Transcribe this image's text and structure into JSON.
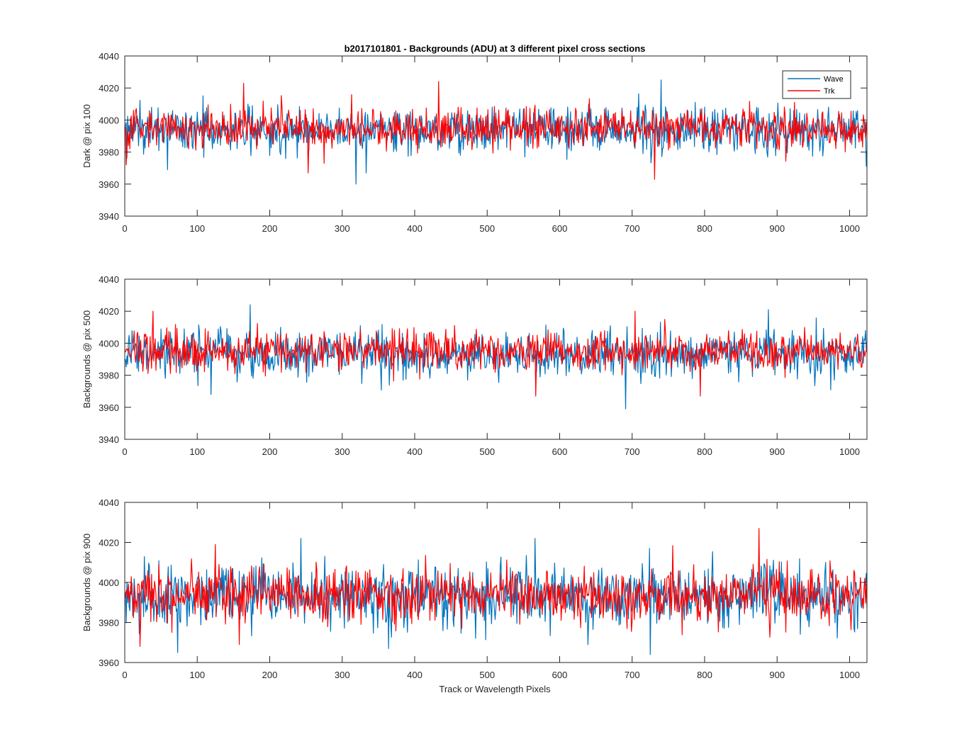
{
  "figure": {
    "title": "b2017101801 - Backgrounds (ADU) at 3 different pixel cross sections",
    "xlabel": "Track or Wavelength Pixels"
  },
  "colors": {
    "wave": "#0072BD",
    "trk": "#FF0000",
    "axis": "#262626"
  },
  "chart_data": [
    {
      "type": "line",
      "title": "b2017101801 - Backgrounds (ADU) at 3 different pixel cross sections",
      "ylabel": "Dark @ pix 100",
      "xlabel": "",
      "xlim": [
        0,
        1024
      ],
      "ylim": [
        3940,
        4040
      ],
      "xticks": [
        0,
        100,
        200,
        300,
        400,
        500,
        600,
        700,
        800,
        900,
        1000
      ],
      "yticks": [
        3940,
        3960,
        3980,
        4000,
        4020,
        4040
      ],
      "legend": {
        "location": "top-right",
        "entries": [
          "Wave",
          "Trk"
        ]
      },
      "series": [
        {
          "name": "Wave",
          "n_points": 1024,
          "mean": 3994,
          "std": 7,
          "extremes": [
            [
              318,
              3960
            ],
            [
              739,
              4025
            ],
            [
              58,
              3969
            ],
            [
              332,
              3967
            ]
          ]
        },
        {
          "name": "Trk",
          "n_points": 1024,
          "mean": 3995,
          "std": 6,
          "extremes": [
            [
              163,
              4023
            ],
            [
              432,
              4024
            ],
            [
              730,
              3963
            ],
            [
              1,
              3972
            ],
            [
              252,
              3967
            ]
          ]
        }
      ]
    },
    {
      "type": "line",
      "title": "",
      "ylabel": "Backgrounds @ pix 500",
      "xlabel": "",
      "xlim": [
        0,
        1024
      ],
      "ylim": [
        3940,
        4040
      ],
      "xticks": [
        0,
        100,
        200,
        300,
        400,
        500,
        600,
        700,
        800,
        900,
        1000
      ],
      "yticks": [
        3940,
        3960,
        3980,
        4000,
        4020,
        4040
      ],
      "series": [
        {
          "name": "Wave",
          "n_points": 1024,
          "mean": 3993,
          "std": 7,
          "extremes": [
            [
              172,
              4024
            ],
            [
              690,
              3959
            ],
            [
              887,
              4021
            ],
            [
              118,
              3968
            ]
          ]
        },
        {
          "name": "Trk",
          "n_points": 1024,
          "mean": 3995,
          "std": 6,
          "extremes": [
            [
              38,
              4020
            ],
            [
              703,
              4020
            ],
            [
              566,
              3967
            ],
            [
              793,
              3967
            ]
          ]
        }
      ]
    },
    {
      "type": "line",
      "title": "",
      "ylabel": "Backgrounds @ pix 900",
      "xlabel": "Track or Wavelength Pixels",
      "xlim": [
        0,
        1024
      ],
      "ylim": [
        3960,
        4040
      ],
      "xticks": [
        0,
        100,
        200,
        300,
        400,
        500,
        600,
        700,
        800,
        900,
        1000
      ],
      "yticks": [
        3960,
        3980,
        4000,
        4020,
        4040
      ],
      "series": [
        {
          "name": "Wave",
          "n_points": 1024,
          "mean": 3993,
          "std": 8,
          "extremes": [
            [
              242,
              4022
            ],
            [
              565,
              4022
            ],
            [
              724,
              3964
            ],
            [
              72,
              3965
            ],
            [
              363,
              3967
            ]
          ]
        },
        {
          "name": "Trk",
          "n_points": 1024,
          "mean": 3994,
          "std": 7,
          "extremes": [
            [
              874,
              4027
            ],
            [
              124,
              4019
            ],
            [
              20,
              3968
            ],
            [
              157,
              3969
            ]
          ]
        }
      ]
    }
  ]
}
